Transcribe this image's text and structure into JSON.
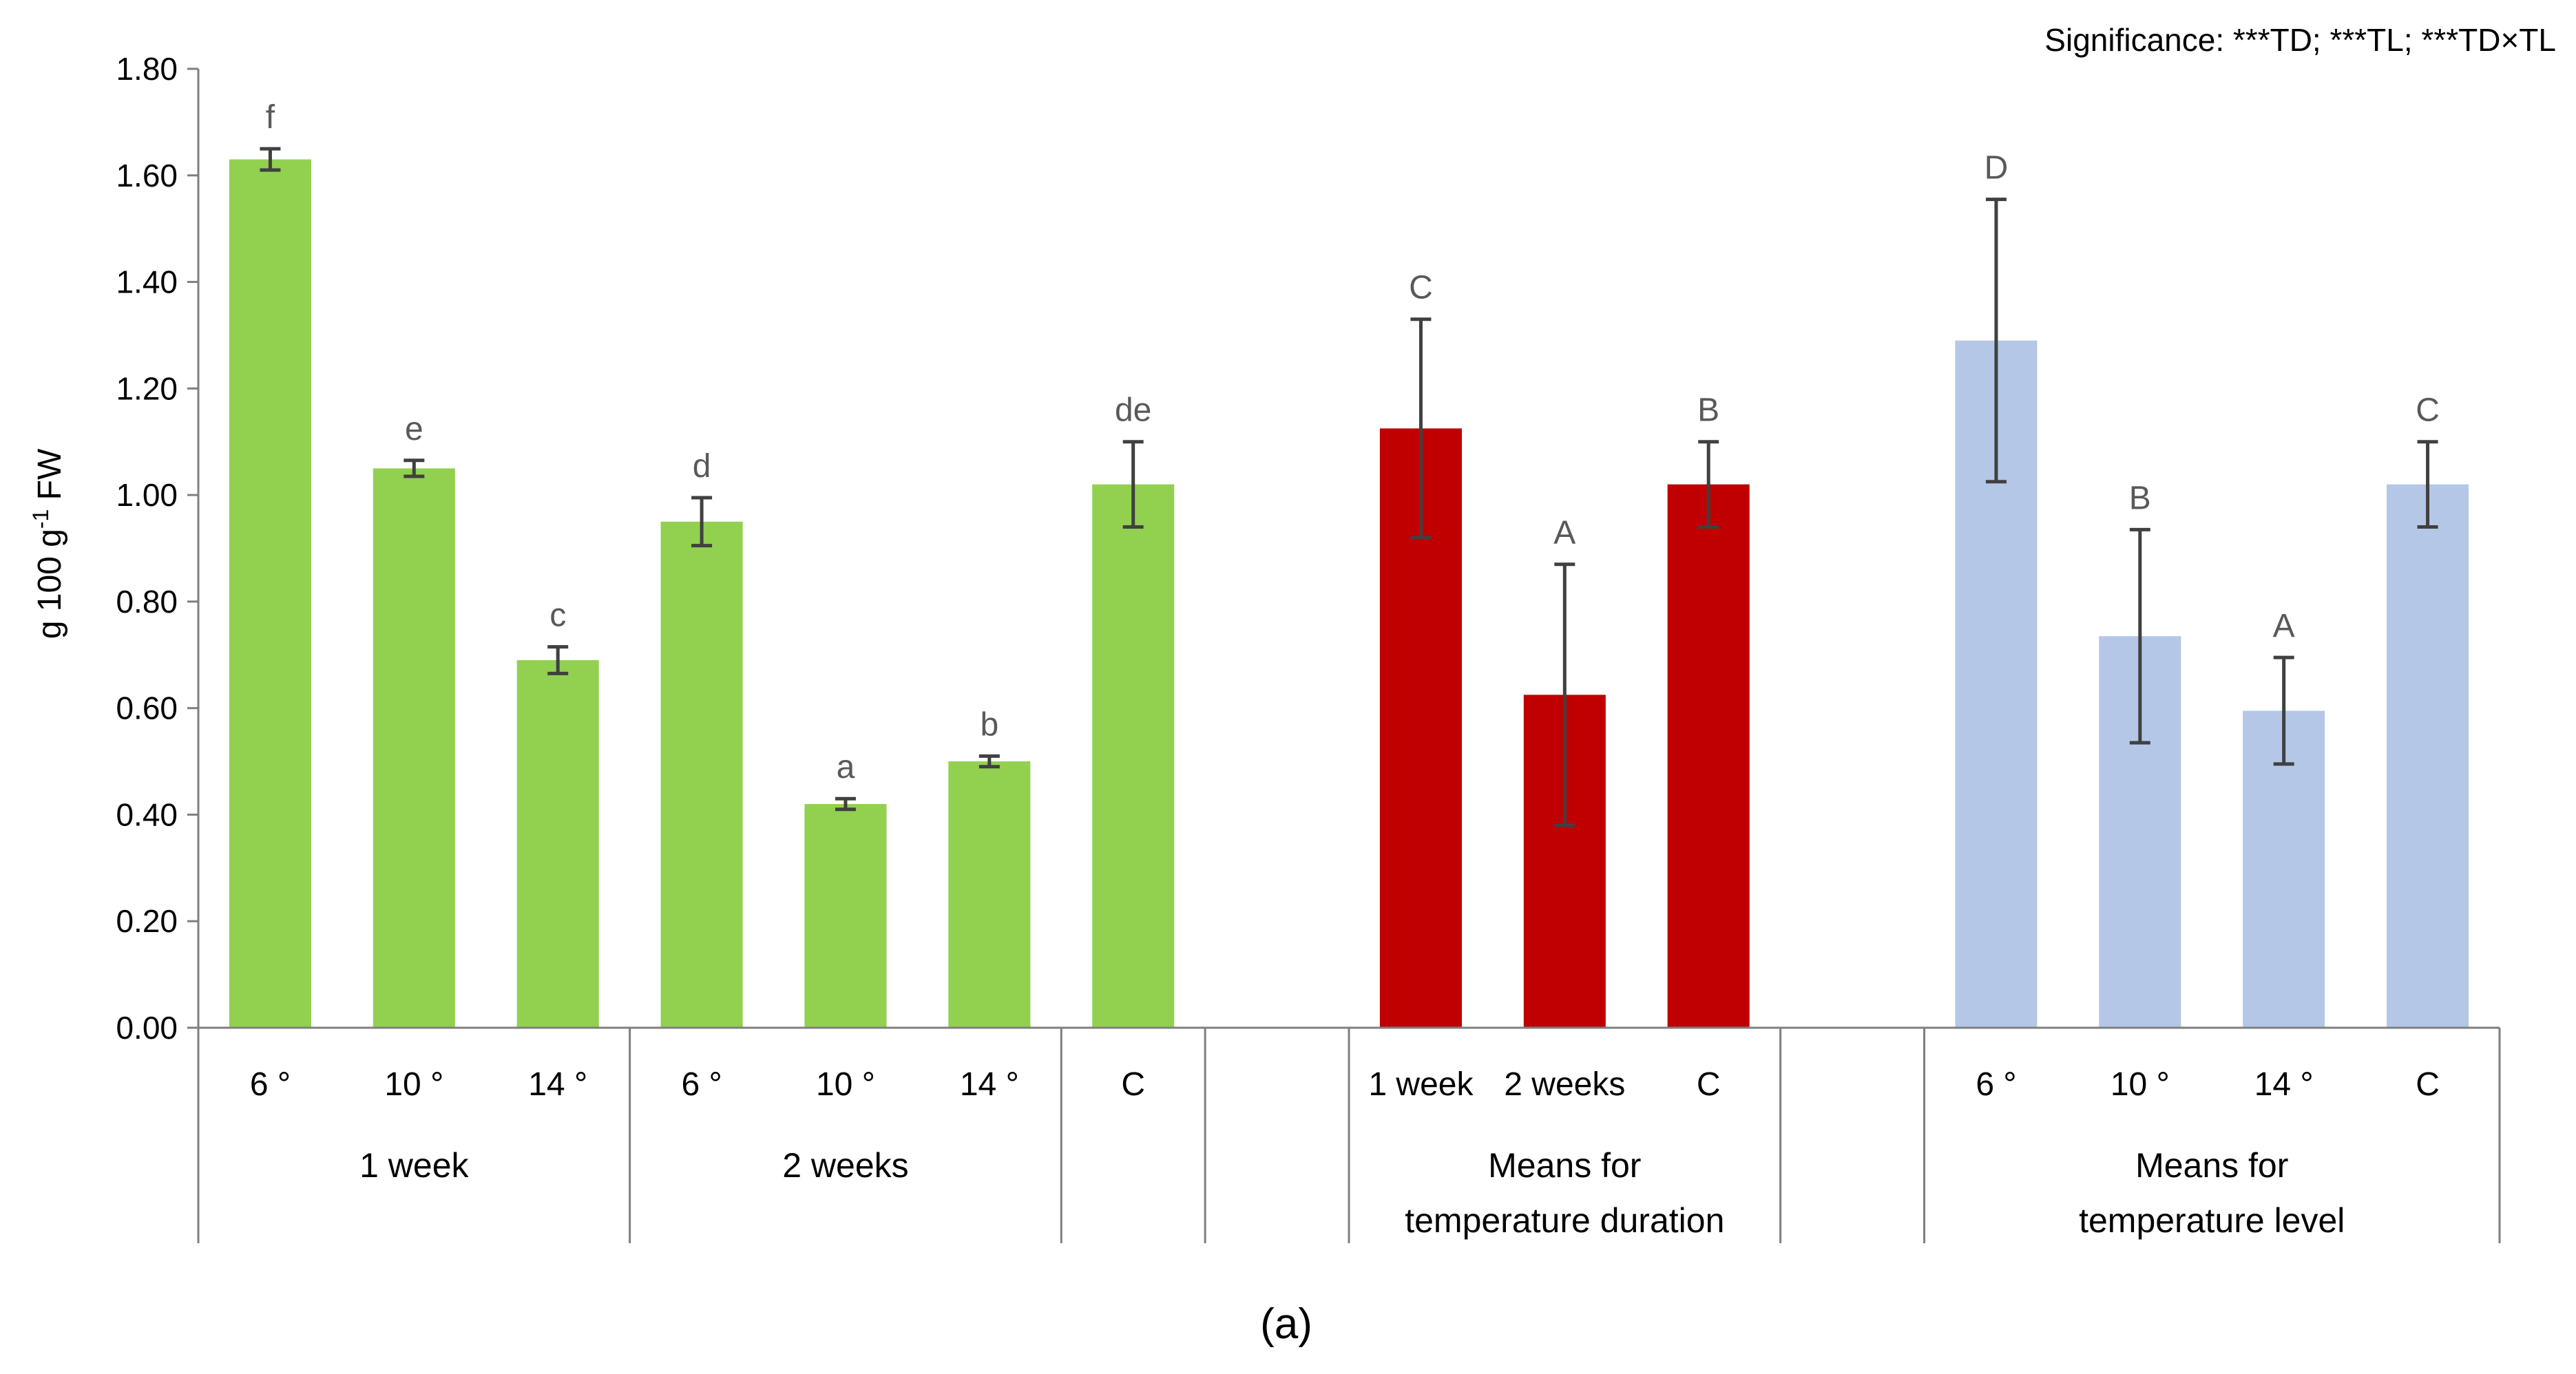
{
  "chart_data": {
    "type": "bar",
    "significance_note": "Significance: ***TD; ***TL; ***TD×TL",
    "ylabel_main": "g 100 g",
    "ylabel_sup": "-1",
    "ylabel_tail": " FW",
    "ylim": [
      0,
      1.8
    ],
    "yticks": [
      "0.00",
      "0.20",
      "0.40",
      "0.60",
      "0.80",
      "1.00",
      "1.20",
      "1.40",
      "1.60",
      "1.80"
    ],
    "ytick_values": [
      0,
      0.2,
      0.4,
      0.6,
      0.8,
      1.0,
      1.2,
      1.4,
      1.6,
      1.8
    ],
    "panel_caption": "(a)",
    "colors": {
      "green": "#92d050",
      "red": "#c00000",
      "blue": "#b4c7e7",
      "axis": "#7f7f7f",
      "error": "#404040"
    },
    "bars": [
      {
        "category": "6 °",
        "value": 1.63,
        "error": 0.02,
        "letter": "f",
        "color": "#92d050"
      },
      {
        "category": "10 °",
        "value": 1.05,
        "error": 0.015,
        "letter": "e",
        "color": "#92d050"
      },
      {
        "category": "14 °",
        "value": 0.69,
        "error": 0.025,
        "letter": "c",
        "color": "#92d050"
      },
      {
        "category": "6 °",
        "value": 0.95,
        "error": 0.045,
        "letter": "d",
        "color": "#92d050"
      },
      {
        "category": "10 °",
        "value": 0.42,
        "error": 0.01,
        "letter": "a",
        "color": "#92d050"
      },
      {
        "category": "14 °",
        "value": 0.5,
        "error": 0.01,
        "letter": "b",
        "color": "#92d050"
      },
      {
        "category": "C",
        "value": 1.02,
        "error": 0.08,
        "letter": "de",
        "color": "#92d050"
      },
      {
        "category": "",
        "value": null,
        "error": null,
        "letter": "",
        "color": ""
      },
      {
        "category": "1 week",
        "value": 1.125,
        "error": 0.205,
        "letter": "C",
        "color": "#c00000"
      },
      {
        "category": "2 weeks",
        "value": 0.625,
        "error": 0.245,
        "letter": "A",
        "color": "#c00000"
      },
      {
        "category": "C",
        "value": 1.02,
        "error": 0.08,
        "letter": "B",
        "color": "#c00000"
      },
      {
        "category": "",
        "value": null,
        "error": null,
        "letter": "",
        "color": ""
      },
      {
        "category": "6 °",
        "value": 1.29,
        "error": 0.265,
        "letter": "D",
        "color": "#b4c7e7"
      },
      {
        "category": "10 °",
        "value": 0.735,
        "error": 0.2,
        "letter": "B",
        "color": "#b4c7e7"
      },
      {
        "category": "14 °",
        "value": 0.595,
        "error": 0.1,
        "letter": "A",
        "color": "#b4c7e7"
      },
      {
        "category": "C",
        "value": 1.02,
        "error": 0.08,
        "letter": "C",
        "color": "#b4c7e7"
      }
    ],
    "groups": [
      {
        "label_lines": [
          "1 week"
        ],
        "start": 0,
        "end": 2
      },
      {
        "label_lines": [
          "2 weeks"
        ],
        "start": 3,
        "end": 5
      },
      {
        "label_lines": [
          ""
        ],
        "start": 6,
        "end": 6
      },
      {
        "label_lines": [
          ""
        ],
        "start": 7,
        "end": 7
      },
      {
        "label_lines": [
          "Means for",
          "temperature duration"
        ],
        "start": 8,
        "end": 10
      },
      {
        "label_lines": [
          ""
        ],
        "start": 11,
        "end": 11
      },
      {
        "label_lines": [
          "Means for",
          "temperature level"
        ],
        "start": 12,
        "end": 15
      }
    ]
  }
}
